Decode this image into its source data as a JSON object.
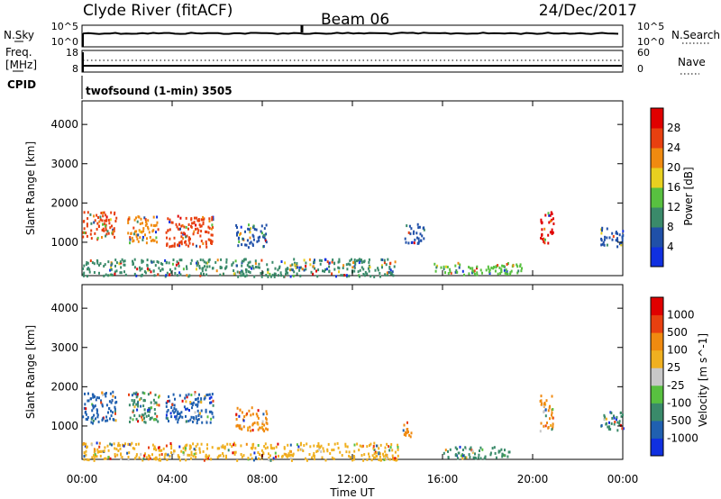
{
  "header": {
    "station": "Clyde River (fitACF)",
    "beam": "Beam 06",
    "date": "24/Dec/2017"
  },
  "nsky_panel": {
    "left_label": "N.Sky",
    "left_ticks": [
      "10^5",
      "10^0"
    ],
    "right_ticks": [
      "10^5",
      "10^0"
    ],
    "right_label": "N.Search"
  },
  "freq_panel": {
    "left_label_1": "Freq.",
    "left_label_2": "[MHz]",
    "left_ticks": [
      "18",
      "8"
    ],
    "right_ticks": [
      "60",
      "0"
    ],
    "right_label": "Nave"
  },
  "cpid": {
    "label": "CPID",
    "text": "twofsound (1-min) 3505"
  },
  "chart_data": [
    {
      "type": "heatmap",
      "name": "power",
      "ylabel": "Slant Range [km]",
      "yticks": [
        "1000",
        "2000",
        "3000",
        "4000"
      ],
      "ylim": [
        150,
        4600
      ],
      "xlim": [
        0,
        24
      ],
      "colorbar": {
        "label": "Power [dB]",
        "ticks": [
          "4",
          "8",
          "12",
          "16",
          "20",
          "24",
          "28"
        ],
        "colors": [
          "#1030e0",
          "#2050a8",
          "#3a8a6a",
          "#58c040",
          "#e8d020",
          "#f08a10",
          "#e84010",
          "#e00000"
        ]
      },
      "scatter_regions": [
        {
          "x0": 0.0,
          "x1": 1.5,
          "y0": 1100,
          "y1": 1800,
          "color": "#e84010"
        },
        {
          "x0": 2.0,
          "x1": 3.4,
          "y0": 1000,
          "y1": 1700,
          "color": "#f08a10"
        },
        {
          "x0": 3.7,
          "x1": 5.8,
          "y0": 900,
          "y1": 1700,
          "color": "#e84010"
        },
        {
          "x0": 6.8,
          "x1": 8.2,
          "y0": 900,
          "y1": 1500,
          "color": "#2050a8"
        },
        {
          "x0": 14.3,
          "x1": 15.2,
          "y0": 1000,
          "y1": 1500,
          "color": "#2050a8"
        },
        {
          "x0": 15.6,
          "x1": 19.5,
          "y0": 200,
          "y1": 500,
          "color": "#58c040"
        },
        {
          "x0": 20.3,
          "x1": 20.9,
          "y0": 1000,
          "y1": 1800,
          "color": "#e00000"
        },
        {
          "x0": 23.0,
          "x1": 24.0,
          "y0": 900,
          "y1": 1400,
          "color": "#2050a8"
        },
        {
          "x0": 0.0,
          "x1": 14.0,
          "y0": 150,
          "y1": 600,
          "color": "#3a8a6a"
        }
      ]
    },
    {
      "type": "heatmap",
      "name": "velocity",
      "ylabel": "Slant Range [km]",
      "yticks": [
        "1000",
        "2000",
        "3000",
        "4000"
      ],
      "ylim": [
        150,
        4600
      ],
      "xlim": [
        0,
        24
      ],
      "colorbar": {
        "label": "Velocity [m s^-1]",
        "ticks": [
          "1000",
          "500",
          "100",
          "25",
          "-25",
          "-100",
          "-500",
          "-1000"
        ],
        "colors": [
          "#1030e0",
          "#2060b0",
          "#3a8a6a",
          "#58c040",
          "#c8c8c8",
          "#f0b020",
          "#f08a10",
          "#e84010",
          "#e00000"
        ]
      },
      "scatter_regions": [
        {
          "x0": 0.0,
          "x1": 1.5,
          "y0": 1100,
          "y1": 1900,
          "color": "#2060b0"
        },
        {
          "x0": 2.0,
          "x1": 3.4,
          "y0": 1100,
          "y1": 1900,
          "color": "#3a8a6a"
        },
        {
          "x0": 3.7,
          "x1": 5.8,
          "y0": 1100,
          "y1": 1900,
          "color": "#2060b0"
        },
        {
          "x0": 6.8,
          "x1": 8.2,
          "y0": 900,
          "y1": 1500,
          "color": "#f08a10"
        },
        {
          "x0": 14.2,
          "x1": 14.6,
          "y0": 700,
          "y1": 1200,
          "color": "#f08a10"
        },
        {
          "x0": 16.0,
          "x1": 19.0,
          "y0": 200,
          "y1": 500,
          "color": "#3a8a6a"
        },
        {
          "x0": 20.3,
          "x1": 20.9,
          "y0": 900,
          "y1": 1800,
          "color": "#f08a10"
        },
        {
          "x0": 23.0,
          "x1": 24.0,
          "y0": 900,
          "y1": 1400,
          "color": "#3a8a6a"
        },
        {
          "x0": 0.0,
          "x1": 14.0,
          "y0": 150,
          "y1": 600,
          "color": "#f0b020"
        }
      ]
    }
  ],
  "x_axis": {
    "ticks": [
      "00:00",
      "04:00",
      "08:00",
      "12:00",
      "16:00",
      "20:00",
      "00:00"
    ],
    "label": "Time UT"
  }
}
